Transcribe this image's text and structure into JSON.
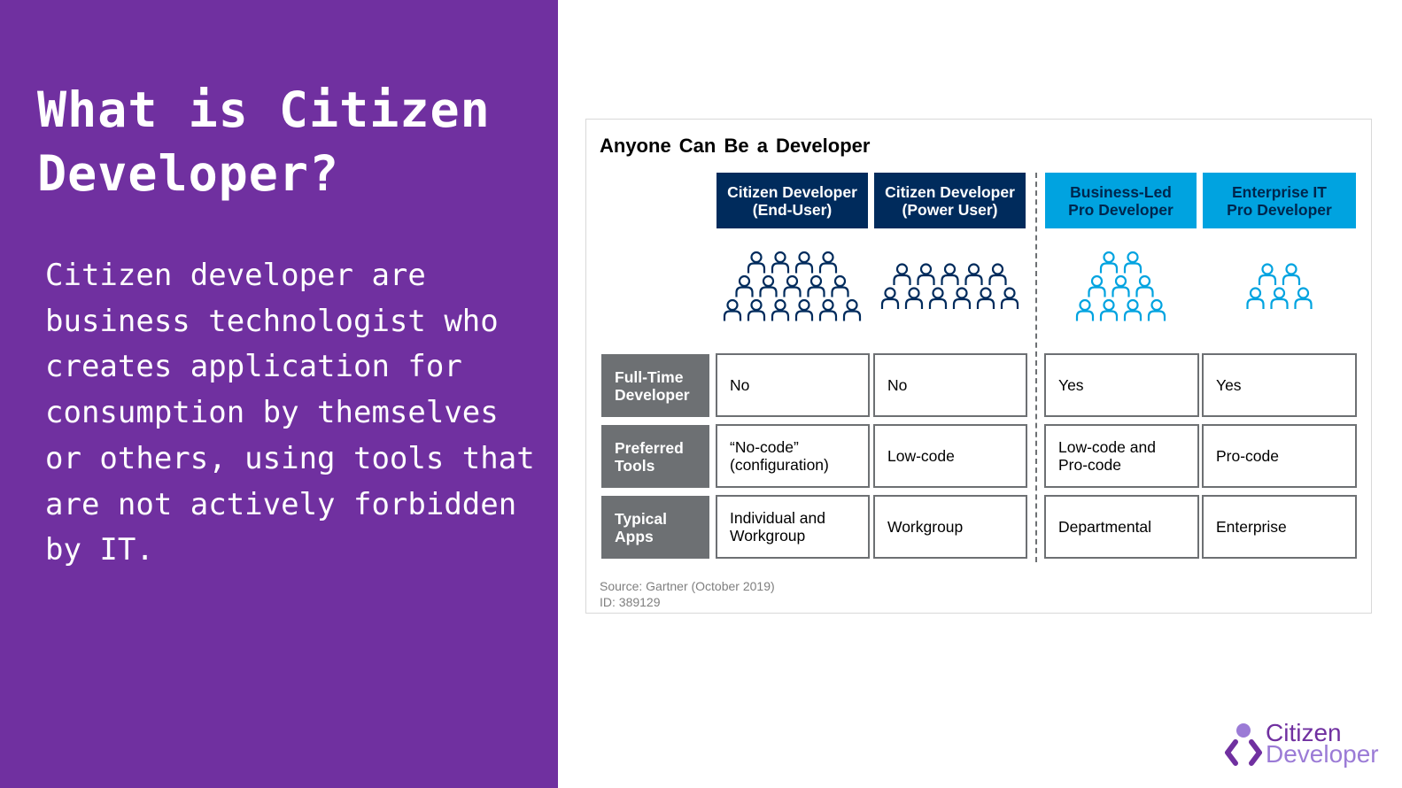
{
  "slide": {
    "title": "What is Citizen Developer?",
    "body": "Citizen developer are business technologist who creates application for consumption by themselves or others, using tools that are not actively forbidden by IT.",
    "colors": {
      "panel": "#7030a0",
      "text": "#ffffff"
    }
  },
  "figure": {
    "title": "Anyone Can Be a Developer",
    "columns": [
      {
        "line1": "Citizen Developer",
        "line2": "(End-User)",
        "color": "#002b5c",
        "people_rows": [
          4,
          5,
          6
        ]
      },
      {
        "line1": "Citizen Developer",
        "line2": "(Power User)",
        "color": "#002b5c",
        "people_rows": [
          5,
          6
        ]
      },
      {
        "line1": "Business-Led",
        "line2": "Pro Developer",
        "color": "#00a3e0",
        "people_rows": [
          2,
          3,
          4
        ]
      },
      {
        "line1": "Enterprise IT",
        "line2": "Pro Developer",
        "color": "#00a3e0",
        "people_rows": [
          2,
          3
        ]
      }
    ],
    "rows": [
      {
        "label1": "Full-Time",
        "label2": "Developer",
        "cells": [
          {
            "l1": "No",
            "l2": ""
          },
          {
            "l1": "No",
            "l2": ""
          },
          {
            "l1": "Yes",
            "l2": ""
          },
          {
            "l1": "Yes",
            "l2": ""
          }
        ]
      },
      {
        "label1": "Preferred",
        "label2": "Tools",
        "cells": [
          {
            "l1": "“No-code”",
            "l2": "(configuration)"
          },
          {
            "l1": "Low-code",
            "l2": ""
          },
          {
            "l1": "Low-code and",
            "l2": "Pro-code"
          },
          {
            "l1": "Pro-code",
            "l2": ""
          }
        ]
      },
      {
        "label1": "Typical",
        "label2": "Apps",
        "cells": [
          {
            "l1": "Individual and",
            "l2": "Workgroup"
          },
          {
            "l1": "Workgroup",
            "l2": ""
          },
          {
            "l1": "Departmental",
            "l2": ""
          },
          {
            "l1": "Enterprise",
            "l2": ""
          }
        ]
      }
    ],
    "source": "Source: Gartner (October 2019)",
    "id": "ID: 389129"
  },
  "brand": {
    "name_line1": "Citizen",
    "name_line2": "Developer",
    "mark_icon": "person-code-brackets-icon"
  }
}
